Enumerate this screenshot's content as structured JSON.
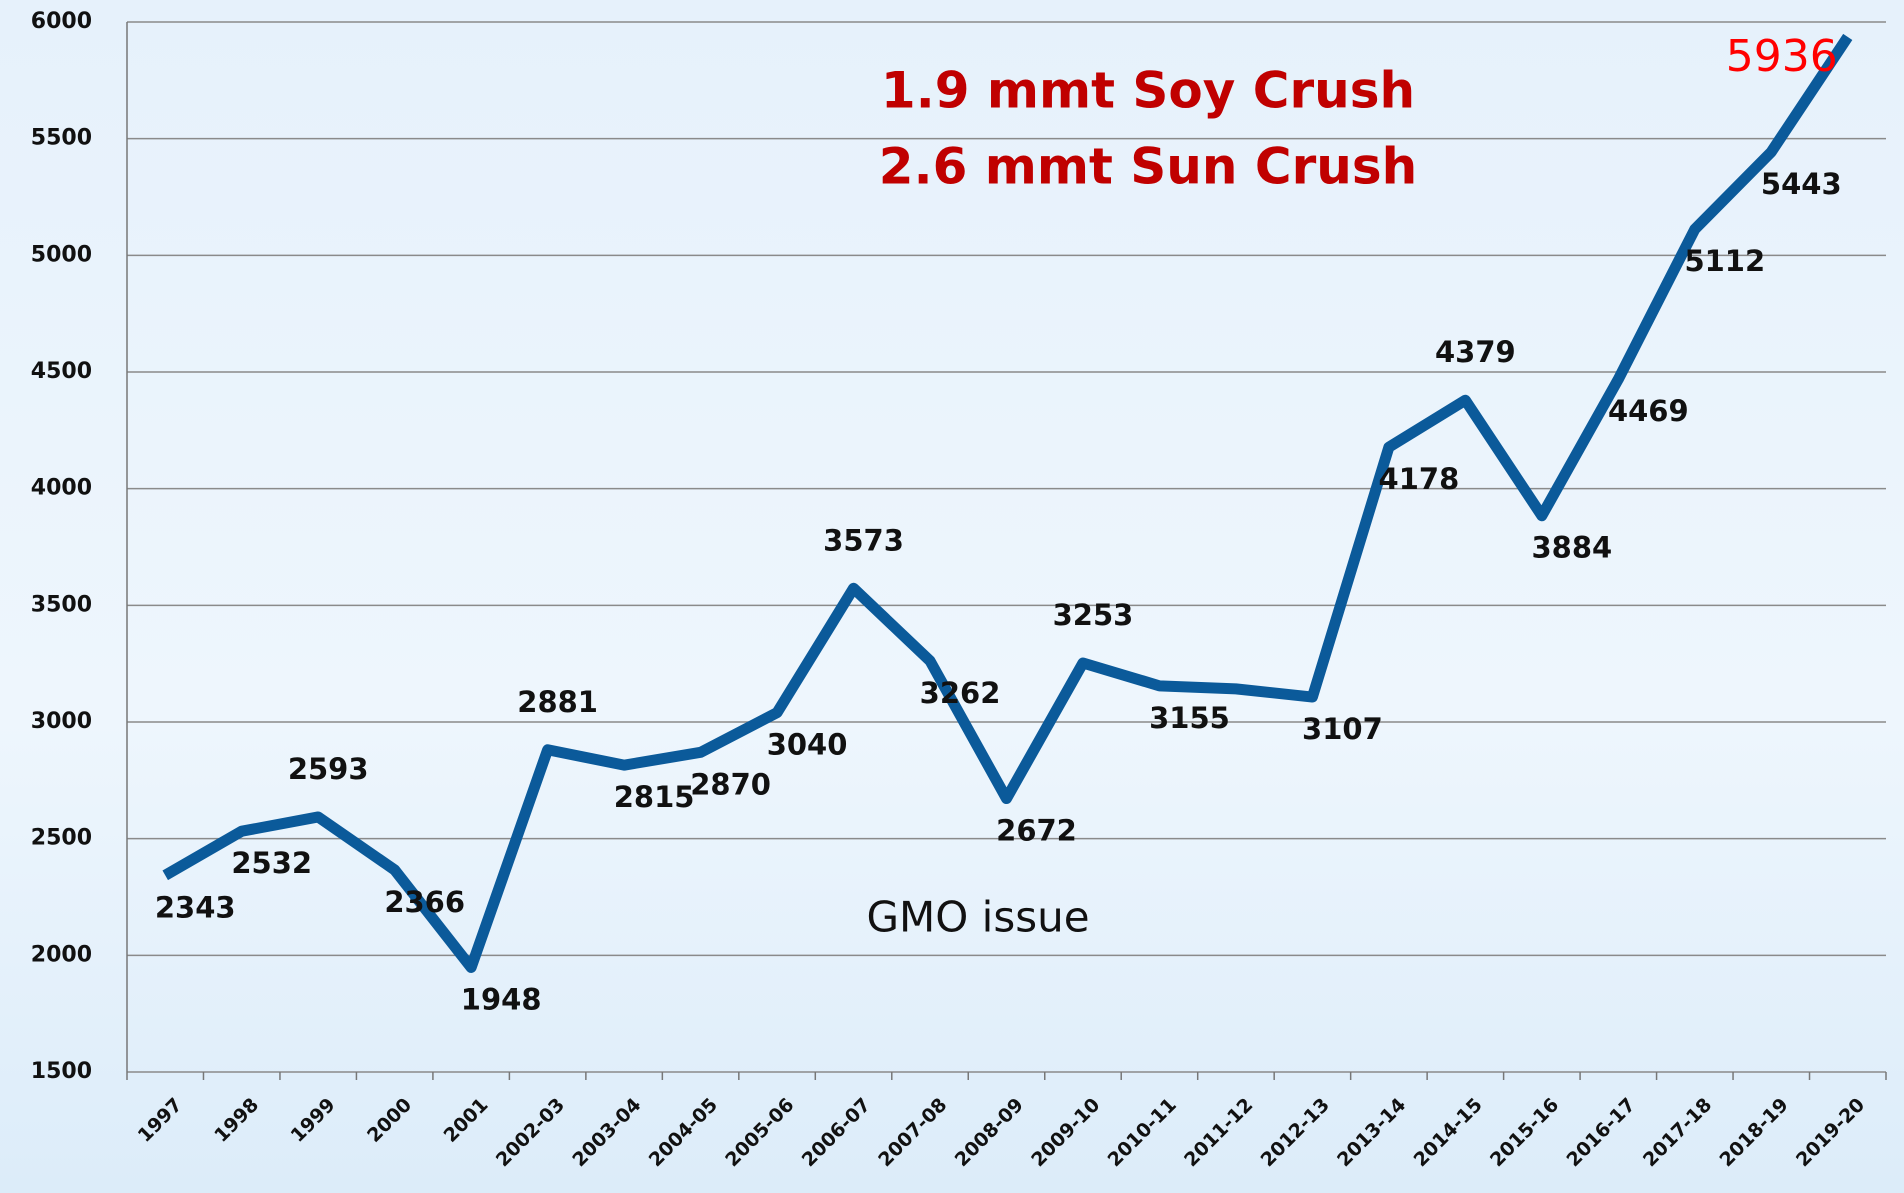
{
  "chart_data": {
    "type": "line",
    "categories": [
      "1997",
      "1998",
      "1999",
      "2000",
      "2001",
      "2002-03",
      "2003-04",
      "2004-05",
      "2005-06",
      "2006-07",
      "2007-08",
      "2008-09",
      "2009-10",
      "2010-11",
      "2011-12",
      "2012-13",
      "2013-14",
      "2014-15",
      "2015-16",
      "2016-17",
      "2017-18",
      "2018-19",
      "2019-20"
    ],
    "series": [
      {
        "name": null,
        "color": "#0b5a9a",
        "values": [
          2343,
          2532,
          2593,
          2366,
          1948,
          2881,
          2815,
          2870,
          3040,
          3573,
          3262,
          2672,
          3253,
          3155,
          3142,
          3107,
          4178,
          4379,
          3884,
          4469,
          5112,
          5443,
          5936
        ],
        "value_labels": [
          "2343",
          "2532",
          "2593",
          "2366",
          "1948",
          "2881",
          "2815",
          "2870",
          "3040",
          "3573",
          "3262",
          "2672",
          "3253",
          "3155",
          null,
          "3107",
          "4178",
          "4379",
          "3884",
          "4469",
          "5112",
          "5443",
          "5936"
        ]
      }
    ],
    "highlight_label_color": "#ff0000",
    "annotations": [
      "1.9 mmt Soy Crush",
      "2.6 mmt Sun Crush",
      "GMO  issue"
    ],
    "ylim": [
      1500,
      6000
    ],
    "yticks": [
      1500,
      2000,
      2500,
      3000,
      3500,
      4000,
      4500,
      5000,
      5500,
      6000
    ],
    "grid": true
  }
}
